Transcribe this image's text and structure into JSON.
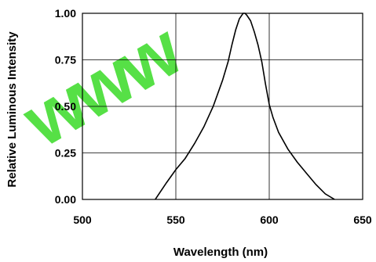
{
  "chart_data": {
    "type": "line",
    "title": "",
    "xlabel": "Wavelength (nm)",
    "ylabel": "Relative Luminous Intensity",
    "xlim": [
      500,
      650
    ],
    "ylim": [
      0,
      1.0
    ],
    "x_ticks": [
      "500",
      "550",
      "600",
      "650"
    ],
    "y_ticks": [
      "0.00",
      "0.25",
      "0.50",
      "0.75",
      "1.00"
    ],
    "grid": true,
    "legend": "none",
    "series": [
      {
        "x": [
          539,
          545,
          550,
          555,
          560,
          565,
          570,
          575,
          578,
          580,
          582,
          584,
          586,
          587,
          588,
          590,
          592,
          594,
          596,
          598,
          600,
          602,
          605,
          610,
          615,
          620,
          625,
          630,
          635
        ],
        "y": [
          0.0,
          0.09,
          0.16,
          0.22,
          0.3,
          0.39,
          0.5,
          0.64,
          0.74,
          0.83,
          0.91,
          0.97,
          1.0,
          1.0,
          0.99,
          0.96,
          0.9,
          0.83,
          0.74,
          0.62,
          0.51,
          0.44,
          0.36,
          0.27,
          0.2,
          0.14,
          0.08,
          0.03,
          0.0
        ]
      }
    ],
    "line_color": "#000000",
    "axis_color": "#000000"
  },
  "watermark": {
    "text": "www",
    "color": "#44dd33"
  }
}
